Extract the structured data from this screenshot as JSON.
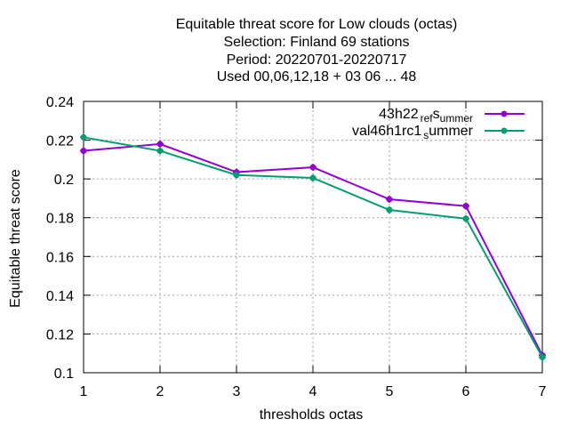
{
  "chart_data": {
    "type": "line",
    "title_lines": [
      "Equitable threat score  for Low clouds (octas)",
      "Selection: Finland     69 stations",
      "Period: 20220701-20220717",
      "Used  00,06,12,18  + 03 06 ... 48"
    ],
    "xlabel": "thresholds octas",
    "ylabel": "Equitable threat score",
    "x": [
      1,
      2,
      3,
      4,
      5,
      6,
      7
    ],
    "xlim": [
      1,
      7
    ],
    "ylim": [
      0.1,
      0.24
    ],
    "yticks": [
      0.1,
      0.12,
      0.14,
      0.16,
      0.18,
      0.2,
      0.22,
      0.24
    ],
    "ytick_labels": [
      "0.1",
      "0.12",
      "0.14",
      "0.16",
      "0.18",
      "0.2",
      "0.22",
      "0.24"
    ],
    "xtick_labels": [
      "1",
      "2",
      "3",
      "4",
      "5",
      "6",
      "7"
    ],
    "grid": true,
    "legend_position": "top-right",
    "series": [
      {
        "name": "43h22_ref_summer",
        "legend_parts": [
          "43h22",
          "ref",
          "s",
          "ummer"
        ],
        "color": "#9400d3",
        "values": [
          0.2145,
          0.218,
          0.2035,
          0.206,
          0.1895,
          0.186,
          0.109
        ]
      },
      {
        "name": "val46h1rc1_summer",
        "legend_parts": [
          "val46h1rc1",
          "s",
          "ummer"
        ],
        "color": "#009e73",
        "values": [
          0.2215,
          0.2145,
          0.202,
          0.2005,
          0.184,
          0.1795,
          0.108
        ]
      }
    ]
  }
}
